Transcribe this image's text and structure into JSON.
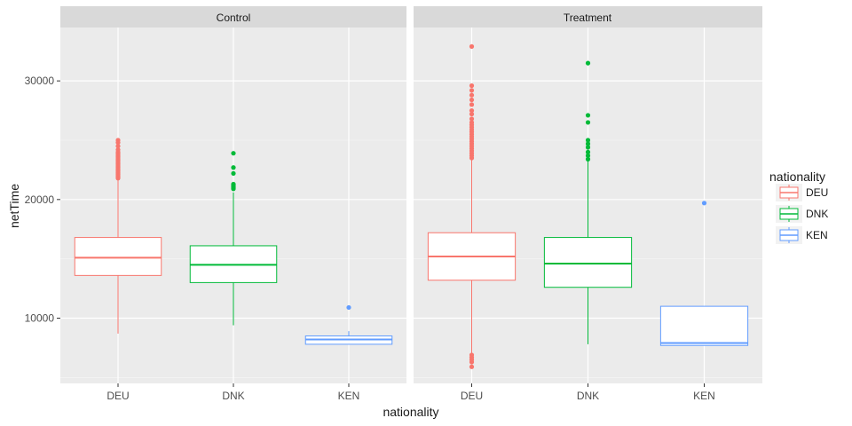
{
  "chart_data": {
    "type": "boxplot",
    "xlabel": "nationality",
    "ylabel": "netTime",
    "ylim": [
      4500,
      34500
    ],
    "yticks": [
      10000,
      20000,
      30000
    ],
    "categories": [
      "DEU",
      "DNK",
      "KEN"
    ],
    "grid": true,
    "legend": {
      "title": "nationality",
      "position": "right",
      "entries": [
        "DEU",
        "DNK",
        "KEN"
      ]
    },
    "colors": {
      "DEU": "#f8766d",
      "DNK": "#00ba38",
      "KEN": "#619cff"
    },
    "panels": [
      {
        "title": "Control",
        "boxes": [
          {
            "category": "DEU",
            "whisker_low": 8700,
            "q1": 13600,
            "median": 15100,
            "q3": 16800,
            "whisker_high": 21700,
            "outliers": [
              21800,
              21900,
              22000,
              22100,
              22200,
              22300,
              22400,
              22500,
              22600,
              22700,
              22800,
              22900,
              23000,
              23100,
              23200,
              23300,
              23400,
              23500,
              23600,
              23700,
              23800,
              23900,
              24000,
              24200,
              24500,
              24800,
              25000
            ]
          },
          {
            "category": "DNK",
            "whisker_low": 9400,
            "q1": 13000,
            "median": 14500,
            "q3": 16100,
            "whisker_high": 20600,
            "outliers": [
              20900,
              21000,
              21100,
              21200,
              21300,
              22200,
              22700,
              23900
            ]
          },
          {
            "category": "KEN",
            "whisker_low": 7800,
            "q1": 7800,
            "median": 8200,
            "q3": 8500,
            "whisker_high": 8900,
            "outliers": [
              10900
            ]
          }
        ]
      },
      {
        "title": "Treatment",
        "boxes": [
          {
            "category": "DEU",
            "whisker_low": 7000,
            "q1": 13200,
            "median": 15200,
            "q3": 17200,
            "whisker_high": 23400,
            "outliers": [
              5900,
              6300,
              6500,
              6700,
              6900,
              23500,
              23700,
              23900,
              24100,
              24300,
              24500,
              24700,
              24900,
              25100,
              25300,
              25500,
              25700,
              25900,
              26100,
              26300,
              26500,
              26800,
              27200,
              27500,
              28000,
              28400,
              28800,
              29200,
              29600,
              32900
            ]
          },
          {
            "category": "DNK",
            "whisker_low": 7800,
            "q1": 12600,
            "median": 14600,
            "q3": 16800,
            "whisker_high": 23200,
            "outliers": [
              23400,
              23700,
              24000,
              24400,
              24700,
              25000,
              26500,
              27100,
              31500
            ]
          },
          {
            "category": "KEN",
            "whisker_low": 7700,
            "q1": 7700,
            "median": 7900,
            "q3": 11000,
            "whisker_high": 11000,
            "outliers": [
              19700
            ]
          }
        ]
      }
    ]
  }
}
